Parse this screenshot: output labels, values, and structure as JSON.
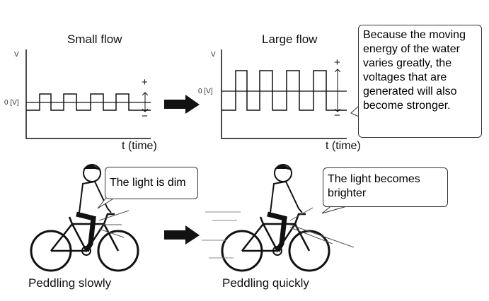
{
  "top": {
    "small_flow": {
      "title": "Small flow",
      "y_label": "V",
      "zero_label": "0 [V]",
      "x_label": "t (time)",
      "plus": "+",
      "minus": "−"
    },
    "large_flow": {
      "title": "Large flow",
      "y_label": "V",
      "zero_label": "0 [V]",
      "x_label": "t (time)",
      "plus": "+",
      "minus": "−"
    },
    "explanation": "Because the moving energy of the water varies greatly, the voltages that  are generated will also become stronger."
  },
  "bottom": {
    "slow": {
      "bubble": "The light is dim",
      "caption": "Peddling slowly"
    },
    "fast": {
      "bubble": "The light becomes brighter",
      "caption": "Peddling quickly"
    }
  },
  "icons": [
    "right-arrow-icon",
    "bicycle-rider-icon"
  ]
}
